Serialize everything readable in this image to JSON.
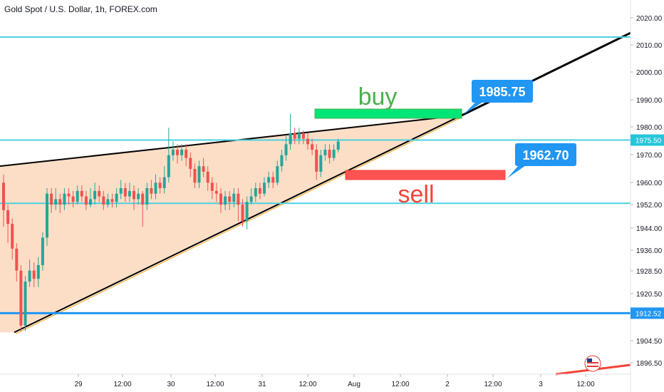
{
  "header": {
    "symbol_title": "Gold Spot / U.S. Dollar, 1h, FOREX.com"
  },
  "colors": {
    "up": "#26a69a",
    "down": "#ef5350",
    "accent_blue": "#2196f3",
    "cyan_line": "#4dd0e1",
    "triangle_fill": "#fbd8bc",
    "buy": "#4caf50",
    "sell": "#f44336"
  },
  "chart_data": {
    "type": "candlestick",
    "title": "Gold Spot / U.S. Dollar, 1h, FOREX.com",
    "y_axis": {
      "ticks": [
        "2020.00",
        "2010.00",
        "2000.00",
        "1990.00",
        "1980.00",
        "1970.00",
        "1960.00",
        "1952.00",
        "1944.00",
        "1936.00",
        "1928.50",
        "1920.50",
        "1912.50",
        "1904.50",
        "1896.50"
      ],
      "range": [
        1893,
        2023
      ]
    },
    "x_axis": {
      "ticks": [
        "29",
        "12:00",
        "30",
        "12:00",
        "31",
        "12:00",
        "Aug",
        "12:00",
        "2",
        "12:00",
        "3",
        "12:00"
      ]
    },
    "horizontal_levels": [
      {
        "name": "upper-level",
        "price": 2013
      },
      {
        "name": "current-price-level",
        "price": 1975.5,
        "tag": "1975.50"
      },
      {
        "name": "mid-level",
        "price": 1952.5
      },
      {
        "name": "support-level",
        "price": 1912.5,
        "tag": "1912.52"
      }
    ],
    "annotations": {
      "buy": {
        "label": "buy",
        "price": 1985.75,
        "callout": "1985.75"
      },
      "sell": {
        "label": "sell",
        "price": 1962.7,
        "callout": "1962.70"
      }
    },
    "candles": [
      [
        1960,
        1950,
        1963,
        1944
      ],
      [
        1950,
        1945,
        1952,
        1938
      ],
      [
        1945,
        1936,
        1947,
        1932
      ],
      [
        1936,
        1928,
        1938,
        1924
      ],
      [
        1928,
        1908,
        1930,
        1906
      ],
      [
        1908,
        1924,
        1926,
        1906
      ],
      [
        1924,
        1928,
        1932,
        1922
      ],
      [
        1928,
        1925,
        1931,
        1922
      ],
      [
        1925,
        1930,
        1933,
        1922
      ],
      [
        1930,
        1940,
        1942,
        1928
      ],
      [
        1940,
        1956,
        1958,
        1937
      ],
      [
        1956,
        1952,
        1958,
        1949
      ],
      [
        1952,
        1954,
        1958,
        1950
      ],
      [
        1954,
        1952,
        1956,
        1949
      ],
      [
        1952,
        1956,
        1958,
        1950
      ],
      [
        1956,
        1955,
        1958,
        1952
      ],
      [
        1955,
        1953,
        1957,
        1951
      ],
      [
        1953,
        1957,
        1959,
        1952
      ],
      [
        1957,
        1955,
        1959,
        1953
      ],
      [
        1955,
        1952,
        1957,
        1950
      ],
      [
        1952,
        1954,
        1958,
        1951
      ],
      [
        1954,
        1957,
        1960,
        1952
      ],
      [
        1957,
        1955,
        1959,
        1953
      ],
      [
        1955,
        1952,
        1957,
        1950
      ],
      [
        1952,
        1954,
        1956,
        1951
      ],
      [
        1954,
        1953,
        1956,
        1951
      ],
      [
        1953,
        1956,
        1958,
        1951
      ],
      [
        1956,
        1958,
        1961,
        1954
      ],
      [
        1958,
        1955,
        1960,
        1953
      ],
      [
        1955,
        1957,
        1960,
        1953
      ],
      [
        1957,
        1954,
        1959,
        1950
      ],
      [
        1954,
        1956,
        1958,
        1952
      ],
      [
        1956,
        1952,
        1957,
        1944
      ],
      [
        1952,
        1958,
        1960,
        1950
      ],
      [
        1958,
        1956,
        1961,
        1954
      ],
      [
        1956,
        1960,
        1963,
        1954
      ],
      [
        1960,
        1958,
        1962,
        1956
      ],
      [
        1958,
        1962,
        1966,
        1956
      ],
      [
        1962,
        1970,
        1980,
        1960
      ],
      [
        1970,
        1972,
        1975,
        1968
      ],
      [
        1972,
        1970,
        1974,
        1967
      ],
      [
        1970,
        1972,
        1974,
        1968
      ],
      [
        1972,
        1969,
        1974,
        1966
      ],
      [
        1969,
        1965,
        1971,
        1962
      ],
      [
        1965,
        1960,
        1967,
        1958
      ],
      [
        1960,
        1966,
        1968,
        1958
      ],
      [
        1966,
        1964,
        1969,
        1962
      ],
      [
        1964,
        1960,
        1966,
        1957
      ],
      [
        1960,
        1957,
        1962,
        1954
      ],
      [
        1957,
        1956,
        1960,
        1953
      ],
      [
        1956,
        1952,
        1958,
        1949
      ],
      [
        1952,
        1955,
        1957,
        1950
      ],
      [
        1955,
        1953,
        1957,
        1950
      ],
      [
        1953,
        1956,
        1958,
        1951
      ],
      [
        1956,
        1952,
        1958,
        1946
      ],
      [
        1952,
        1946,
        1954,
        1944
      ],
      [
        1946,
        1953,
        1955,
        1943
      ],
      [
        1953,
        1955,
        1958,
        1952
      ],
      [
        1955,
        1958,
        1960,
        1953
      ],
      [
        1958,
        1956,
        1960,
        1954
      ],
      [
        1956,
        1960,
        1962,
        1955
      ],
      [
        1960,
        1962,
        1964,
        1958
      ],
      [
        1962,
        1960,
        1964,
        1958
      ],
      [
        1960,
        1966,
        1968,
        1959
      ],
      [
        1966,
        1970,
        1972,
        1964
      ],
      [
        1970,
        1974,
        1977,
        1968
      ],
      [
        1974,
        1978,
        1985,
        1972
      ],
      [
        1978,
        1976,
        1980,
        1974
      ],
      [
        1976,
        1978,
        1980,
        1974
      ],
      [
        1978,
        1976,
        1979,
        1974
      ],
      [
        1976,
        1974,
        1978,
        1972
      ],
      [
        1974,
        1972,
        1976,
        1970
      ],
      [
        1972,
        1964,
        1974,
        1961
      ],
      [
        1964,
        1970,
        1972,
        1962
      ],
      [
        1970,
        1972,
        1974,
        1968
      ],
      [
        1972,
        1969,
        1974,
        1967
      ],
      [
        1969,
        1972,
        1974,
        1968
      ],
      [
        1972,
        1975,
        1976,
        1971
      ]
    ]
  }
}
